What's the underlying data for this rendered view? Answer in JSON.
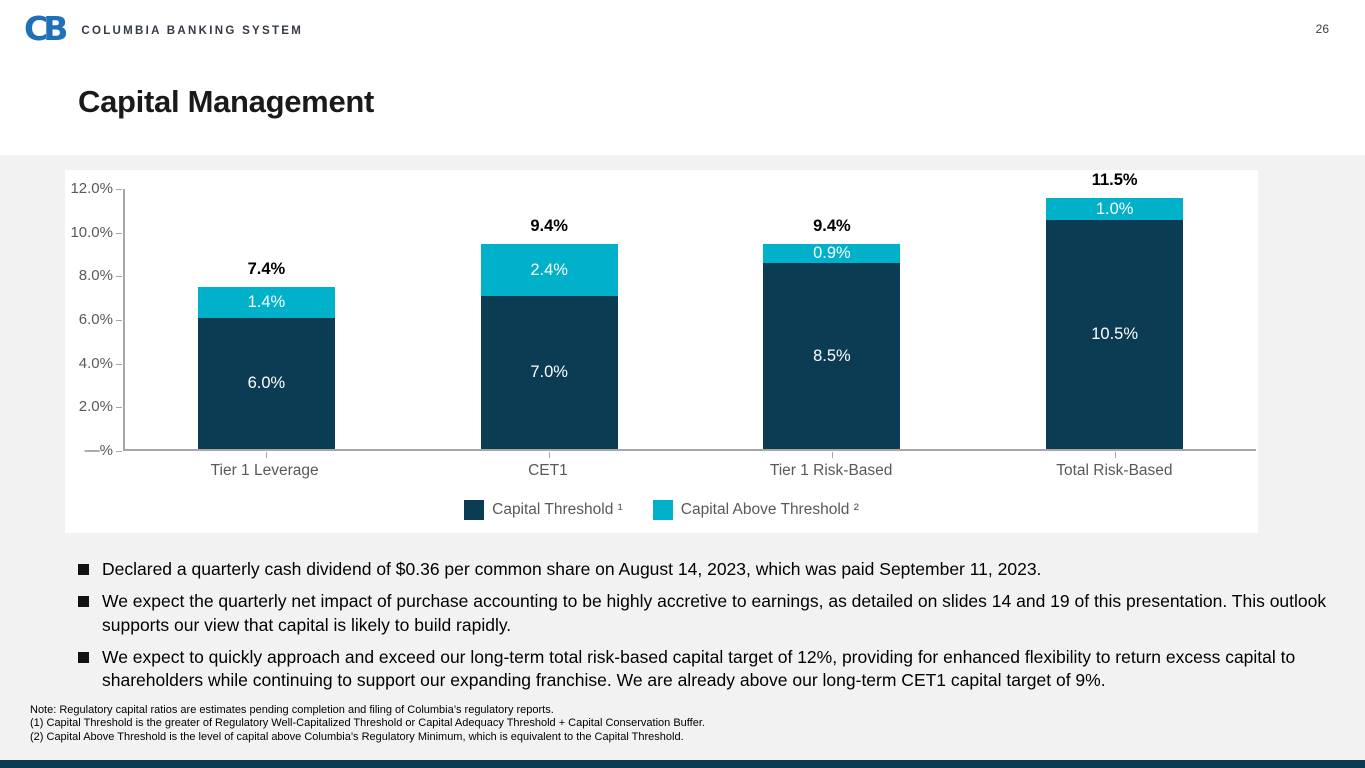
{
  "page_number": "26",
  "logo": {
    "mark": "CB",
    "brand": "COLUMBIA BANKING SYSTEM"
  },
  "title": "Capital Management",
  "chart_data": {
    "type": "bar",
    "stacked": true,
    "title": "",
    "xlabel": "",
    "ylabel": "",
    "ylim": [
      0,
      12
    ],
    "grid": false,
    "legend_position": "bottom",
    "categories": [
      "Tier 1 Leverage",
      "CET1",
      "Tier 1 Risk-Based",
      "Total Risk-Based"
    ],
    "series": [
      {
        "name": "Capital Threshold ¹",
        "color": "#0c3c54",
        "values": [
          6.0,
          7.0,
          8.5,
          10.5
        ],
        "labels": [
          "6.0%",
          "7.0%",
          "8.5%",
          "10.5%"
        ]
      },
      {
        "name": "Capital Above Threshold ²",
        "color": "#00b1c9",
        "values": [
          1.4,
          2.4,
          0.9,
          1.0
        ],
        "labels": [
          "1.4%",
          "2.4%",
          "0.9%",
          "1.0%"
        ]
      }
    ],
    "totals": [
      "7.4%",
      "9.4%",
      "9.4%",
      "11.5%"
    ],
    "y_ticks": [
      "12.0%",
      "10.0%",
      "8.0%",
      "6.0%",
      "4.0%",
      "2.0%",
      "—%"
    ]
  },
  "bullets": [
    "Declared a quarterly cash dividend of $0.36 per common share on August 14, 2023, which was paid September 11, 2023.",
    "We expect the quarterly net impact of purchase accounting to be highly accretive to earnings, as detailed on slides 14 and 19 of this presentation. This outlook supports our view that capital is likely to build rapidly.",
    "We expect to quickly approach and exceed our long-term total risk-based capital target of 12%, providing for enhanced flexibility to return excess capital to shareholders while continuing to support our expanding franchise. We are already above our long-term CET1 capital target of 9%."
  ],
  "footnotes": [
    "Note: Regulatory capital ratios are estimates pending completion and filing of Columbia’s regulatory reports.",
    "(1)  Capital Threshold is the greater of Regulatory Well-Capitalized Threshold or Capital Adequacy Threshold + Capital Conservation Buffer.",
    "(2)  Capital Above Threshold is the level of capital above Columbia’s Regulatory Minimum, which is equivalent to the Capital Threshold."
  ]
}
